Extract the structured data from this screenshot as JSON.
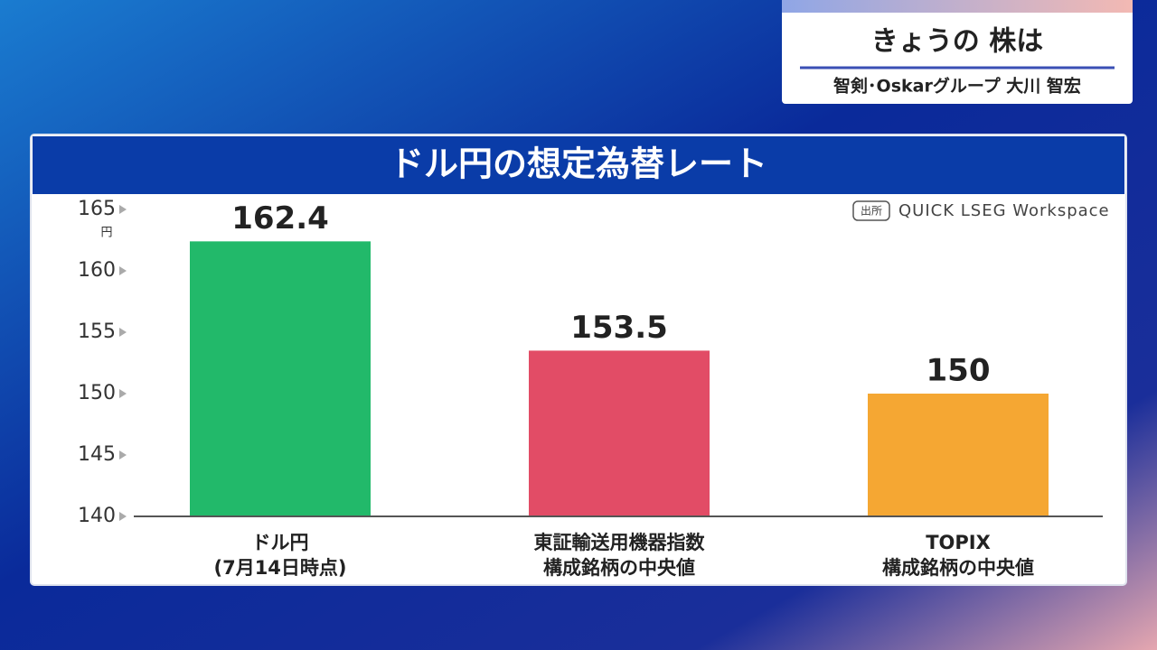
{
  "header": {
    "title": "きょうの 株は",
    "guest": "智剣･Oskarグループ 大川 智宏"
  },
  "chart_data": {
    "type": "bar",
    "title": "ドル円の想定為替レート",
    "source_badge": "出所",
    "source": "QUICK LSEG Workspace",
    "y_unit": "円",
    "categories": [
      [
        "ドル円",
        "(7月14日時点)"
      ],
      [
        "東証輸送用機器指数",
        "構成銘柄の中央値"
      ],
      [
        "TOPIX",
        "構成銘柄の中央値"
      ]
    ],
    "values": [
      162.4,
      153.5,
      150
    ],
    "colors": [
      "#22b96a",
      "#e24c66",
      "#f5a733"
    ],
    "ylim": [
      140,
      165
    ],
    "yticks": [
      140,
      145,
      150,
      155,
      160,
      165
    ],
    "grid": false
  }
}
